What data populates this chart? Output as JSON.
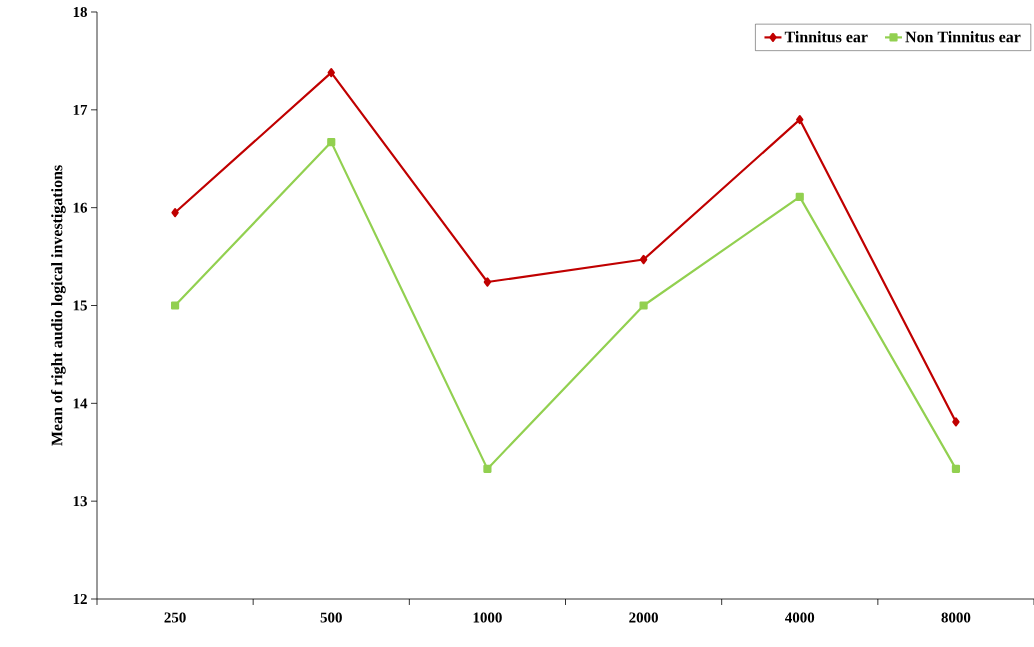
{
  "chart_data": {
    "type": "line",
    "ylabel": "Mean of right audio logical investigations",
    "categories": [
      "250",
      "500",
      "1000",
      "2000",
      "4000",
      "8000"
    ],
    "series": [
      {
        "name": "Tinnitus ear",
        "color": "#c00000",
        "marker": "diamond",
        "values": [
          15.95,
          17.38,
          15.24,
          15.47,
          16.9,
          13.81
        ]
      },
      {
        "name": "Non Tinnitus ear",
        "color": "#92d050",
        "marker": "square",
        "values": [
          15.0,
          16.67,
          13.33,
          15.0,
          16.11,
          13.33
        ]
      }
    ],
    "ylim": [
      12,
      18
    ],
    "yticks": [
      12,
      13,
      14,
      15,
      16,
      17,
      18
    ],
    "grid": false,
    "legend": "top right",
    "line_style": "solid"
  }
}
